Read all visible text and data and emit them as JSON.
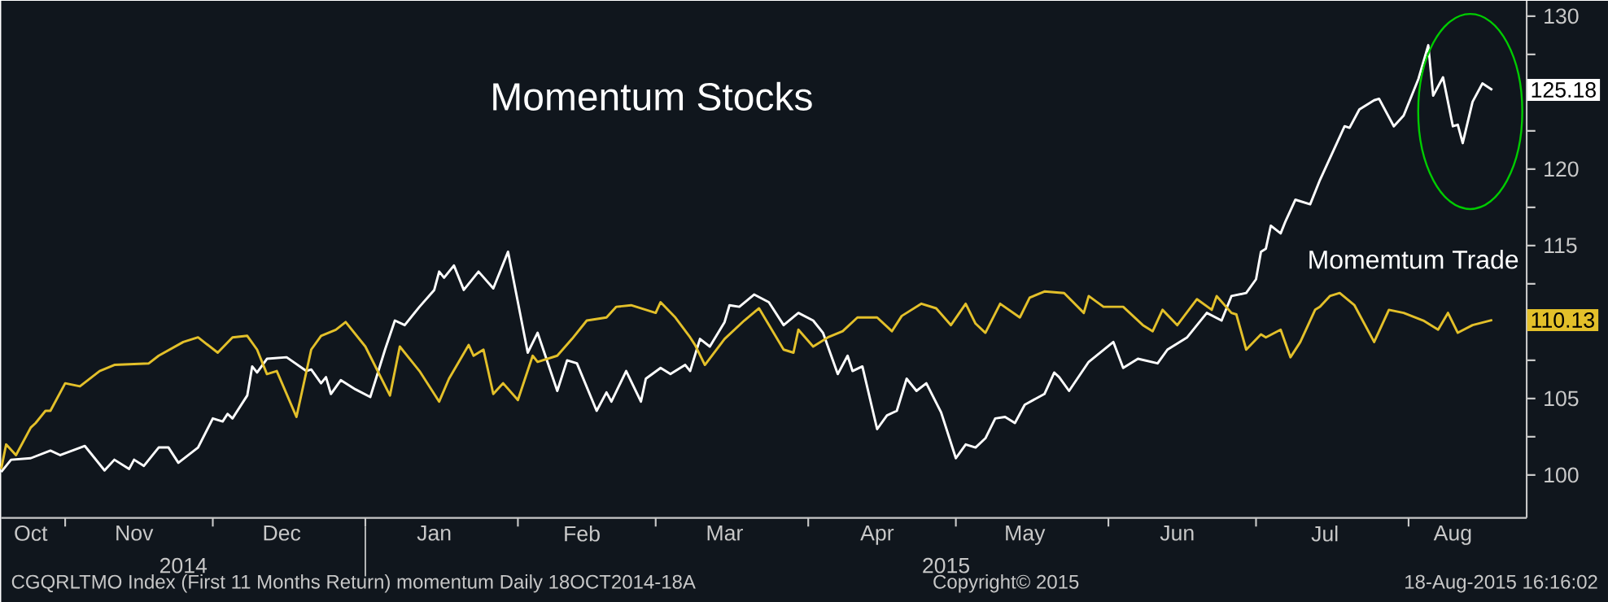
{
  "chart_data": {
    "type": "line",
    "title": "Momentum Stocks",
    "xlim": [
      "2014-10-19",
      "2015-08-25"
    ],
    "ylim": [
      97.2,
      131
    ],
    "xticks": [
      {
        "value": "2014-10-25",
        "label": "Oct"
      },
      {
        "value": "2014-11-15",
        "label": "Nov"
      },
      {
        "value": "2014-12-15",
        "label": "Dec"
      },
      {
        "value": "2015-01-15",
        "label": "Jan"
      },
      {
        "value": "2015-02-14",
        "label": "Feb"
      },
      {
        "value": "2015-03-15",
        "label": "Mar"
      },
      {
        "value": "2015-04-15",
        "label": "Apr"
      },
      {
        "value": "2015-05-15",
        "label": "May"
      },
      {
        "value": "2015-06-15",
        "label": "Jun"
      },
      {
        "value": "2015-07-15",
        "label": "Jul"
      },
      {
        "value": "2015-08-10",
        "label": "Aug"
      },
      {
        "value": "2014-11-01",
        "label": null
      },
      {
        "value": "2014-12-01",
        "label": null
      },
      {
        "value": "2015-01-01",
        "label": null
      },
      {
        "value": "2015-02-01",
        "label": null
      },
      {
        "value": "2015-03-01",
        "label": null
      },
      {
        "value": "2015-04-01",
        "label": null
      },
      {
        "value": "2015-05-01",
        "label": null
      },
      {
        "value": "2015-06-01",
        "label": null
      },
      {
        "value": "2015-07-01",
        "label": null
      },
      {
        "value": "2015-08-01",
        "label": null
      }
    ],
    "yticks": [
      100,
      {
        "value": 102.5,
        "label": null
      },
      105,
      {
        "value": 107.5,
        "label": null
      },
      {
        "value": 110,
        "label": null
      },
      {
        "value": 112.5,
        "label": null
      },
      115,
      {
        "value": 117.5,
        "label": null
      },
      120,
      {
        "value": 122.5,
        "label": null
      },
      {
        "value": 125,
        "label": null
      },
      {
        "value": 127.5,
        "label": null
      },
      130
    ],
    "series": [
      {
        "name": "Momemtum Trade",
        "color": "#ffffff",
        "x": [
          "2014-10-19",
          "2014-10-21",
          "2014-10-25",
          "2014-10-29",
          "2014-10-31",
          "2014-11-05",
          "2014-11-06",
          "2014-11-09",
          "2014-11-11",
          "2014-11-14",
          "2014-11-15",
          "2014-11-17",
          "2014-11-20",
          "2014-11-22",
          "2014-11-24",
          "2014-11-28",
          "2014-12-01",
          "2014-12-03",
          "2014-12-04",
          "2014-12-05",
          "2014-12-08",
          "2014-12-09",
          "2014-12-10",
          "2014-12-12",
          "2014-12-16",
          "2014-12-20",
          "2014-12-21",
          "2014-12-23",
          "2014-12-24",
          "2014-12-25",
          "2014-12-27",
          "2014-12-30",
          "2015-01-02",
          "2015-01-05",
          "2015-01-07",
          "2015-01-09",
          "2015-01-12",
          "2015-01-15",
          "2015-01-16",
          "2015-01-17",
          "2015-01-19",
          "2015-01-21",
          "2015-01-24",
          "2015-01-27",
          "2015-01-30",
          "2015-02-03",
          "2015-02-05",
          "2015-02-09",
          "2015-02-11",
          "2015-02-13",
          "2015-02-17",
          "2015-02-19",
          "2015-02-20",
          "2015-02-23",
          "2015-02-26",
          "2015-02-27",
          "2015-03-02",
          "2015-03-04",
          "2015-03-07",
          "2015-03-08",
          "2015-03-10",
          "2015-03-12",
          "2015-03-15",
          "2015-03-16",
          "2015-03-18",
          "2015-03-21",
          "2015-03-24",
          "2015-03-27",
          "2015-03-30",
          "2015-04-02",
          "2015-04-04",
          "2015-04-07",
          "2015-04-09",
          "2015-04-10",
          "2015-04-12",
          "2015-04-15",
          "2015-04-17",
          "2015-04-19",
          "2015-04-21",
          "2015-04-23",
          "2015-04-25",
          "2015-04-28",
          "2015-05-01",
          "2015-05-03",
          "2015-05-05",
          "2015-05-07",
          "2015-05-09",
          "2015-05-11",
          "2015-05-13",
          "2015-05-15",
          "2015-05-19",
          "2015-05-21",
          "2015-05-22",
          "2015-05-24",
          "2015-05-28",
          "2015-06-02",
          "2015-06-04",
          "2015-06-07",
          "2015-06-11",
          "2015-06-13",
          "2015-06-17",
          "2015-06-21",
          "2015-06-24",
          "2015-06-26",
          "2015-06-29",
          "2015-07-01",
          "2015-07-02",
          "2015-07-03",
          "2015-07-04",
          "2015-07-06",
          "2015-07-07",
          "2015-07-09",
          "2015-07-12",
          "2015-07-14",
          "2015-07-19",
          "2015-07-20",
          "2015-07-22",
          "2015-07-25",
          "2015-07-26",
          "2015-07-29",
          "2015-07-31",
          "2015-08-03",
          "2015-08-05",
          "2015-08-06",
          "2015-08-08",
          "2015-08-10",
          "2015-08-11",
          "2015-08-12",
          "2015-08-14",
          "2015-08-16",
          "2015-08-18"
        ],
        "values": [
          100.2,
          101.0,
          101.1,
          101.6,
          101.3,
          101.9,
          101.5,
          100.3,
          101.0,
          100.4,
          101.0,
          100.6,
          101.8,
          101.8,
          100.8,
          101.8,
          103.7,
          103.5,
          104.0,
          103.7,
          105.2,
          107.1,
          106.7,
          107.6,
          107.7,
          106.8,
          106.9,
          106.0,
          106.4,
          105.3,
          106.2,
          105.6,
          105.1,
          108.2,
          110.1,
          109.8,
          111.0,
          112.1,
          113.3,
          112.9,
          113.7,
          112.1,
          113.3,
          112.2,
          114.6,
          108.0,
          109.3,
          105.5,
          107.5,
          107.3,
          104.2,
          105.4,
          104.8,
          106.8,
          104.8,
          106.3,
          107.0,
          106.6,
          107.2,
          106.8,
          108.9,
          108.4,
          110.0,
          111.1,
          111.0,
          111.8,
          111.3,
          109.8,
          110.6,
          110.1,
          109.3,
          106.6,
          107.8,
          106.8,
          107.1,
          103.0,
          103.9,
          104.2,
          106.3,
          105.5,
          106.0,
          104.1,
          101.1,
          102.0,
          101.8,
          102.4,
          103.7,
          103.8,
          103.4,
          104.6,
          105.3,
          106.7,
          106.4,
          105.5,
          107.4,
          108.7,
          107.0,
          107.6,
          107.3,
          108.2,
          109.0,
          110.6,
          110.1,
          111.7,
          111.9,
          112.8,
          114.6,
          114.8,
          116.3,
          115.8,
          116.6,
          118.0,
          117.7,
          119.3,
          122.8,
          122.7,
          123.9,
          124.5,
          124.6,
          122.8,
          123.5,
          125.9,
          128.1,
          124.8,
          126.0,
          122.8,
          122.9,
          121.7,
          124.4,
          125.6,
          125.18
        ]
      },
      {
        "color": "#e3c02a",
        "x": [
          "2014-10-19",
          "2014-10-20",
          "2014-10-22",
          "2014-10-25",
          "2014-10-26",
          "2014-10-28",
          "2014-10-29",
          "2014-11-01",
          "2014-11-04",
          "2014-11-08",
          "2014-11-11",
          "2014-11-18",
          "2014-11-20",
          "2014-11-25",
          "2014-11-28",
          "2014-12-02",
          "2014-12-05",
          "2014-12-08",
          "2014-12-10",
          "2014-12-12",
          "2014-12-14",
          "2014-12-18",
          "2014-12-21",
          "2014-12-23",
          "2014-12-26",
          "2014-12-28",
          "2015-01-01",
          "2015-01-06",
          "2015-01-08",
          "2015-01-12",
          "2015-01-14",
          "2015-01-16",
          "2015-01-18",
          "2015-01-22",
          "2015-01-23",
          "2015-01-25",
          "2015-01-27",
          "2015-01-29",
          "2015-02-01",
          "2015-02-04",
          "2015-02-05",
          "2015-02-09",
          "2015-02-12",
          "2015-02-15",
          "2015-02-19",
          "2015-02-21",
          "2015-02-24",
          "2015-03-01",
          "2015-03-02",
          "2015-03-05",
          "2015-03-08",
          "2015-03-09",
          "2015-03-11",
          "2015-03-15",
          "2015-03-16",
          "2015-03-19",
          "2015-03-22",
          "2015-03-27",
          "2015-03-29",
          "2015-03-30",
          "2015-04-02",
          "2015-04-05",
          "2015-04-08",
          "2015-04-11",
          "2015-04-15",
          "2015-04-18",
          "2015-04-20",
          "2015-04-24",
          "2015-04-27",
          "2015-04-30",
          "2015-05-03",
          "2015-05-05",
          "2015-05-07",
          "2015-05-10",
          "2015-05-14",
          "2015-05-16",
          "2015-05-19",
          "2015-05-23",
          "2015-05-27",
          "2015-05-28",
          "2015-05-31",
          "2015-06-04",
          "2015-06-08",
          "2015-06-10",
          "2015-06-12",
          "2015-06-15",
          "2015-06-19",
          "2015-06-22",
          "2015-06-23",
          "2015-06-26",
          "2015-06-27",
          "2015-06-29",
          "2015-07-02",
          "2015-07-03",
          "2015-07-06",
          "2015-07-08",
          "2015-07-10",
          "2015-07-13",
          "2015-07-14",
          "2015-07-16",
          "2015-07-18",
          "2015-07-21",
          "2015-07-25",
          "2015-07-28",
          "2015-07-31",
          "2015-08-04",
          "2015-08-07",
          "2015-08-09",
          "2015-08-11",
          "2015-08-14",
          "2015-08-18"
        ],
        "values": [
          100.4,
          102.0,
          101.3,
          103.1,
          103.4,
          104.2,
          104.2,
          106.0,
          105.8,
          106.8,
          107.2,
          107.3,
          107.8,
          108.7,
          109.0,
          108.0,
          109.0,
          109.1,
          108.2,
          106.6,
          106.8,
          103.8,
          108.2,
          109.1,
          109.5,
          110.0,
          108.4,
          105.2,
          108.4,
          106.8,
          105.8,
          104.8,
          106.3,
          108.5,
          107.8,
          108.2,
          105.3,
          106.0,
          104.9,
          107.8,
          107.4,
          107.8,
          108.9,
          110.1,
          110.3,
          111.0,
          111.1,
          110.6,
          111.3,
          110.3,
          109.0,
          108.5,
          107.2,
          108.9,
          109.2,
          110.1,
          110.9,
          108.2,
          108.0,
          109.5,
          108.4,
          109.0,
          109.4,
          110.3,
          110.3,
          109.4,
          110.4,
          111.2,
          110.9,
          109.8,
          111.2,
          109.9,
          109.3,
          111.2,
          110.3,
          111.6,
          112.0,
          111.9,
          110.6,
          111.7,
          111.0,
          111.0,
          109.8,
          109.4,
          110.8,
          109.8,
          111.5,
          110.8,
          111.7,
          110.6,
          110.5,
          108.2,
          109.2,
          109.0,
          109.5,
          107.7,
          108.7,
          110.8,
          111.0,
          111.7,
          111.9,
          111.1,
          108.7,
          110.8,
          110.6,
          110.1,
          109.5,
          110.6,
          109.3,
          109.8,
          110.13
        ]
      }
    ],
    "annotations": [
      "2014",
      "2015",
      "CGQRLTMO Index (First 11 Months Return) momentum Daily 18OCT2014-18A",
      "Copyright© 2015",
      "18-Aug-2015 16:16:02",
      {
        "text": "125.18",
        "x": "2015-08-18",
        "y": 125.18
      },
      {
        "text": "110.13",
        "x": "2015-08-18",
        "y": 110.13
      }
    ]
  }
}
